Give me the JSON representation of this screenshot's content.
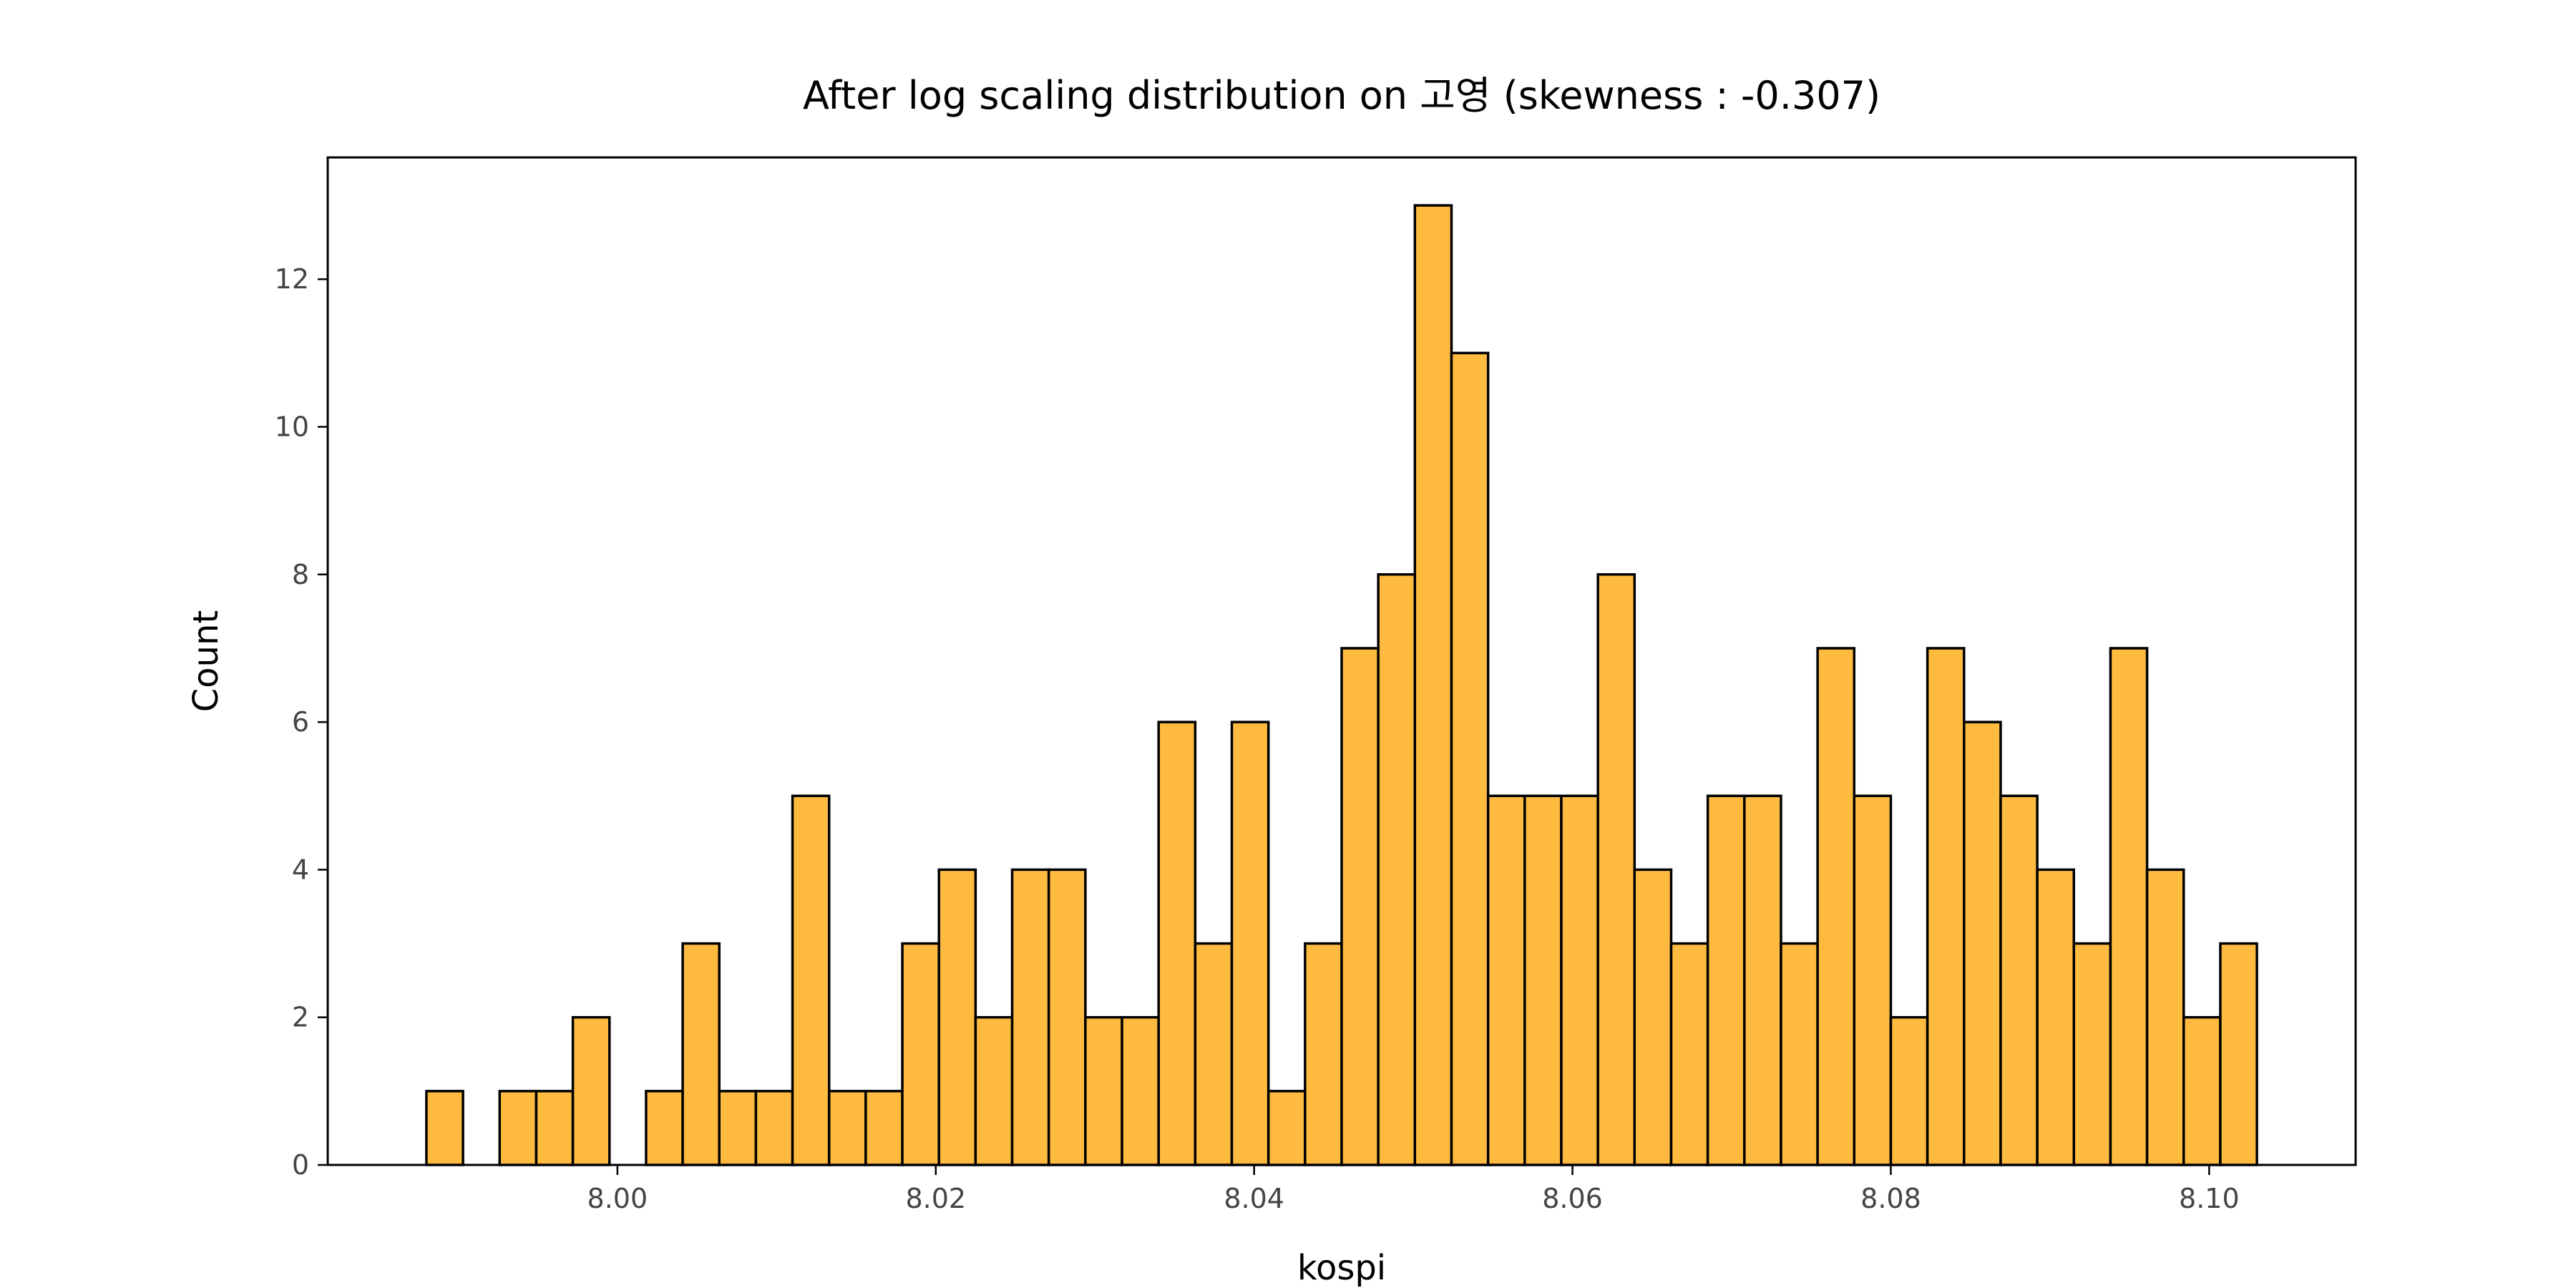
{
  "chart_data": {
    "type": "bar",
    "title": "After log scaling distribution on 고영 (skewness : -0.307)",
    "xlabel": "kospi",
    "ylabel": "Count",
    "bar_color": "#ffbb40",
    "edge_color": "#000000",
    "bin_start": 7.988,
    "bin_width": 0.0023,
    "values": [
      1,
      0,
      1,
      1,
      2,
      0,
      1,
      3,
      1,
      1,
      5,
      1,
      1,
      3,
      4,
      2,
      4,
      4,
      2,
      2,
      6,
      3,
      6,
      1,
      3,
      7,
      8,
      13,
      11,
      5,
      5,
      5,
      8,
      4,
      3,
      5,
      5,
      3,
      7,
      5,
      2,
      7,
      6,
      5,
      4,
      3,
      7,
      4,
      2,
      3
    ],
    "xlim": [
      7.9818,
      8.1092
    ],
    "ylim": [
      0,
      13.65
    ],
    "xticks": [
      {
        "value": 8.0,
        "label": "8.00"
      },
      {
        "value": 8.02,
        "label": "8.02"
      },
      {
        "value": 8.04,
        "label": "8.04"
      },
      {
        "value": 8.06,
        "label": "8.06"
      },
      {
        "value": 8.08,
        "label": "8.08"
      },
      {
        "value": 8.1,
        "label": "8.10"
      }
    ],
    "yticks": [
      {
        "value": 0,
        "label": "0"
      },
      {
        "value": 2,
        "label": "2"
      },
      {
        "value": 4,
        "label": "4"
      },
      {
        "value": 6,
        "label": "6"
      },
      {
        "value": 8,
        "label": "8"
      },
      {
        "value": 10,
        "label": "10"
      },
      {
        "value": 12,
        "label": "12"
      }
    ],
    "grid": false,
    "legend": "none"
  }
}
